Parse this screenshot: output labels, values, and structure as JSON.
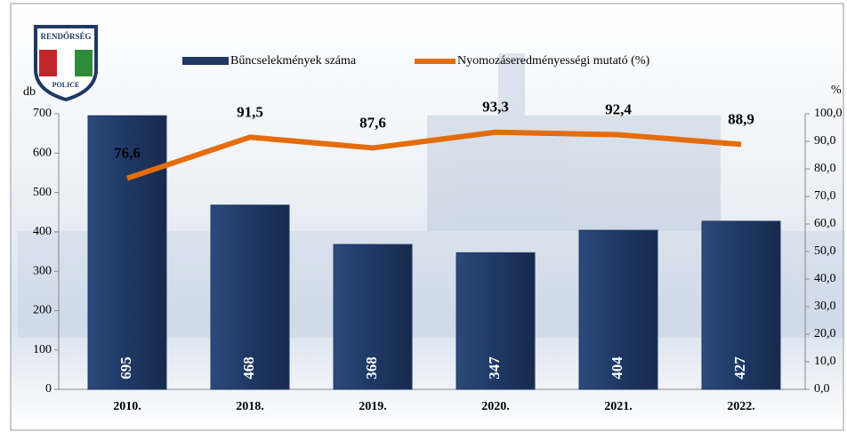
{
  "logo_texts": [
    "RENDŐRSÉG",
    "POLICE"
  ],
  "chart_data": {
    "type": "bar",
    "categories": [
      "2010.",
      "2018.",
      "2019.",
      "2020.",
      "2021.",
      "2022."
    ],
    "series": [
      {
        "name": "Bűncselekmények száma",
        "color": "#1f3864",
        "values": [
          695,
          468,
          368,
          347,
          404,
          427
        ]
      },
      {
        "name": "Nyomozáseredményességi mutató (%)",
        "color": "#e46c0a",
        "axis": "y2",
        "type": "line",
        "values": [
          76.6,
          91.5,
          87.6,
          93.3,
          92.4,
          88.9
        ],
        "value_labels": [
          "76,6",
          "91,5",
          "87,6",
          "93,3",
          "92,4",
          "88,9"
        ]
      }
    ],
    "y_label": "db",
    "y2_label": "%",
    "ylim": [
      0,
      700
    ],
    "yticks": [
      0,
      100,
      200,
      300,
      400,
      500,
      600,
      700
    ],
    "y2lim": [
      0,
      100
    ],
    "y2ticks": [
      {
        "value": 0,
        "label": "0,0"
      },
      {
        "value": 10,
        "label": "10,0"
      },
      {
        "value": 20,
        "label": "20,0"
      },
      {
        "value": 30,
        "label": "30,0"
      },
      {
        "value": 40,
        "label": "40,0"
      },
      {
        "value": 50,
        "label": "50,0"
      },
      {
        "value": 60,
        "label": "60,0"
      },
      {
        "value": 70,
        "label": "70,0"
      },
      {
        "value": 80,
        "label": "80,0"
      },
      {
        "value": 90,
        "label": "90,0"
      },
      {
        "value": 100,
        "label": "100,0"
      }
    ],
    "legend": "top"
  }
}
